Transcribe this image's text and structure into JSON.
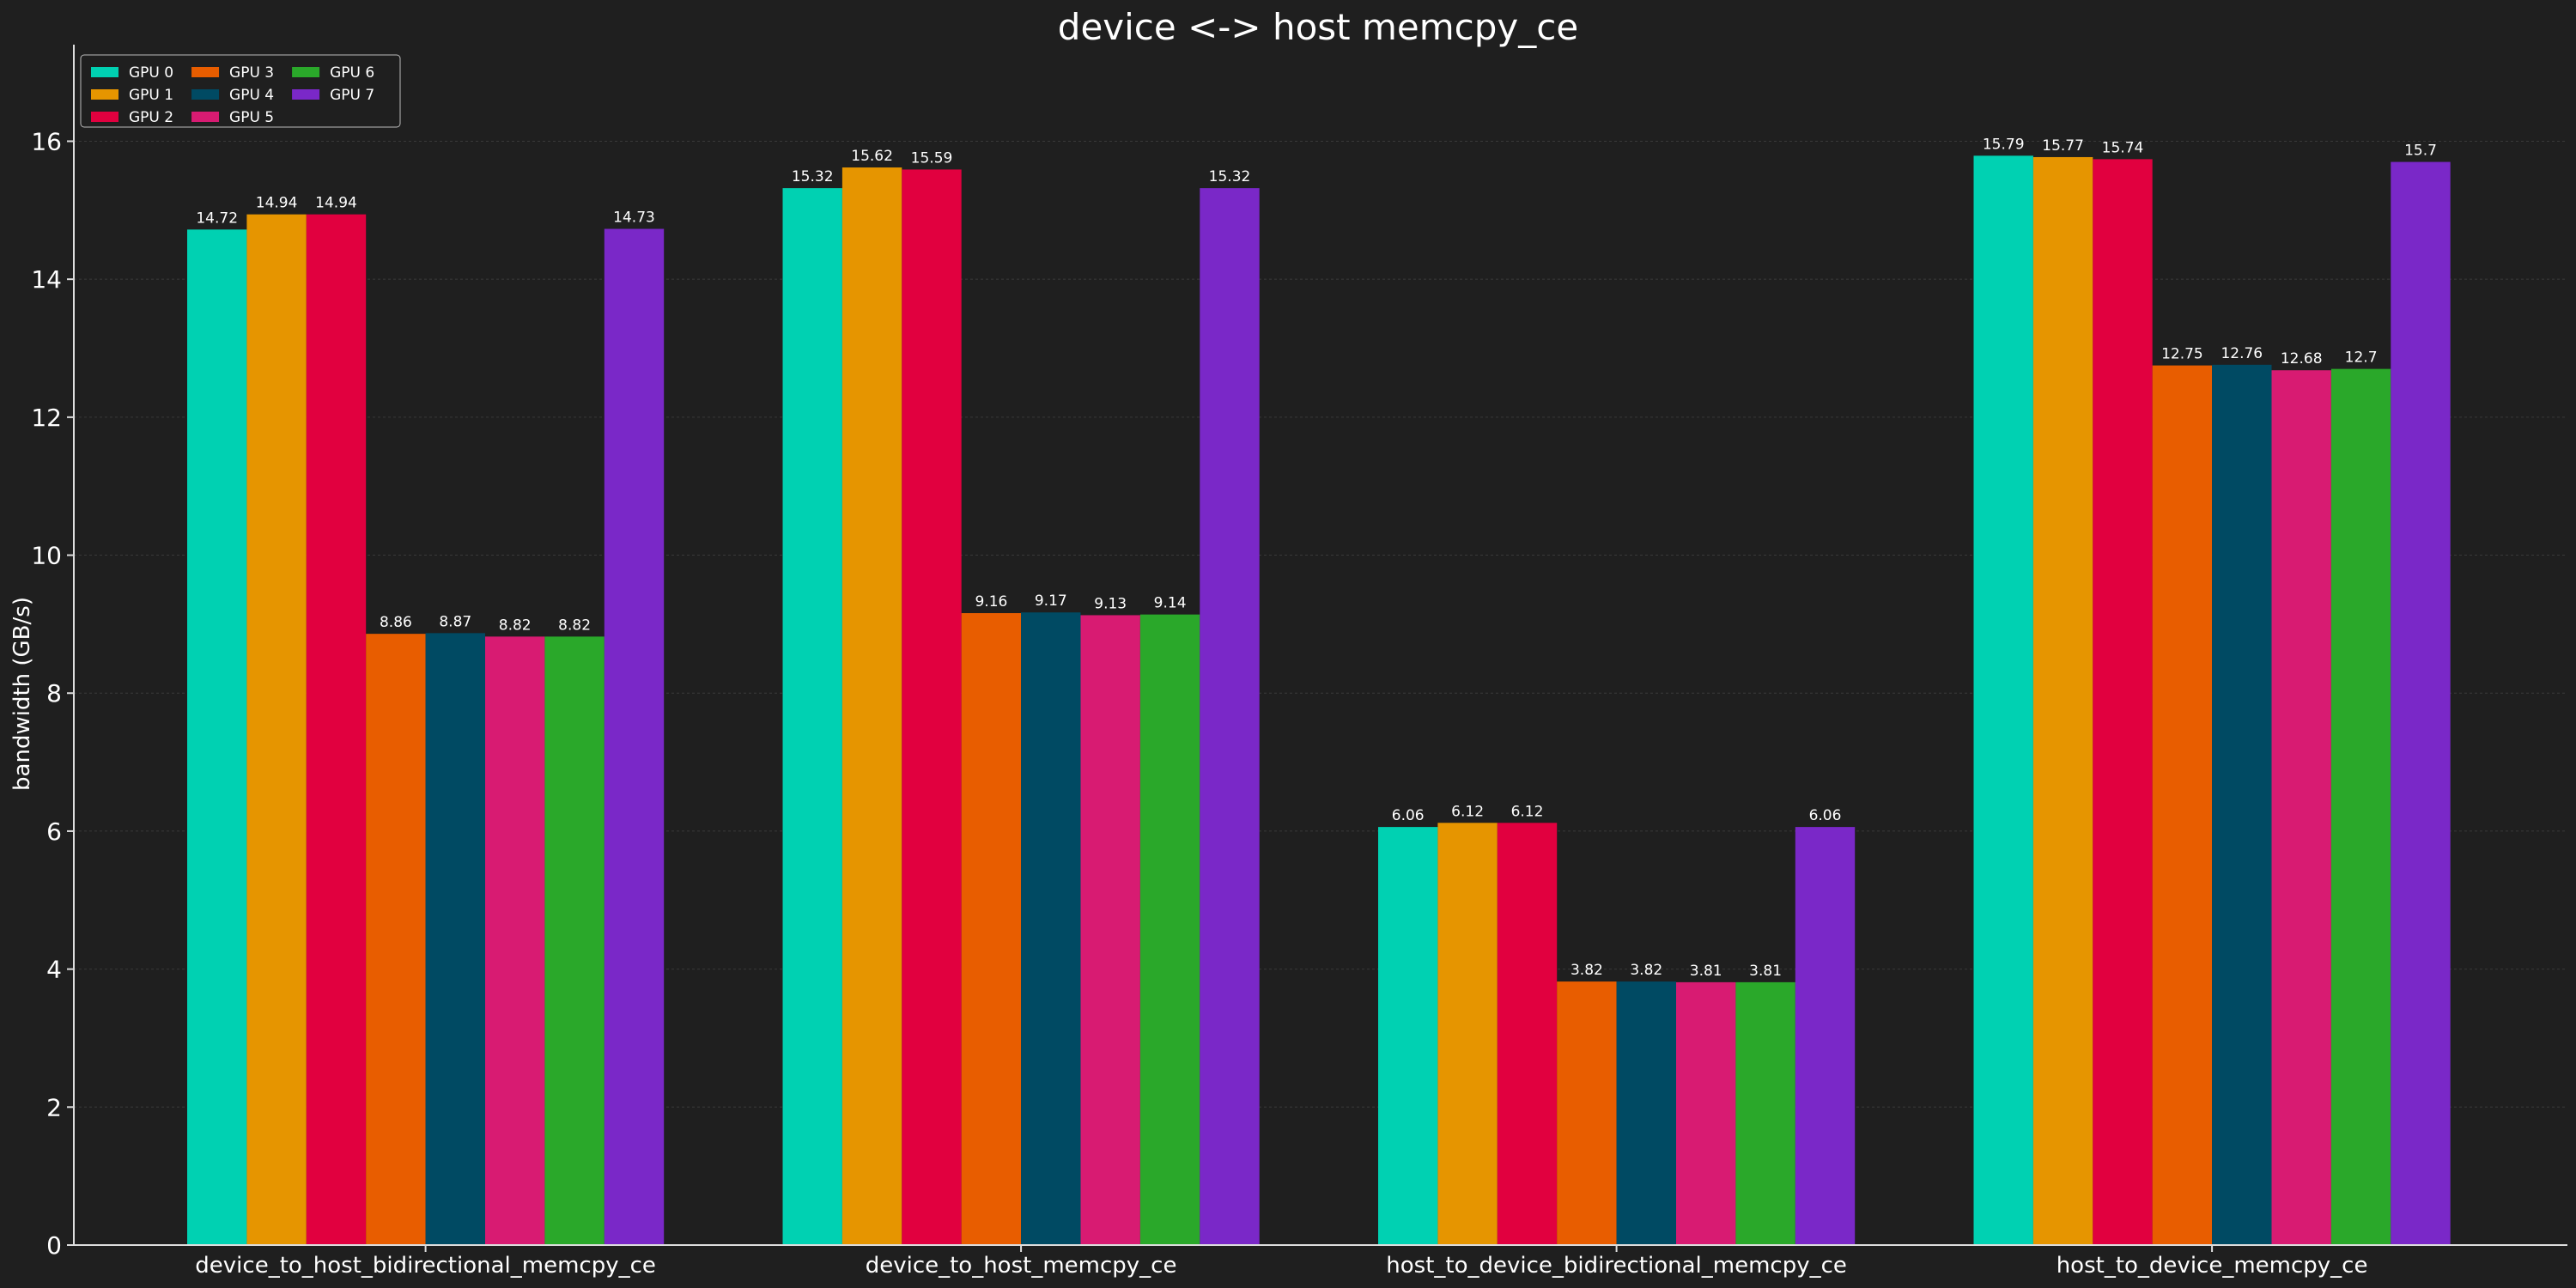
{
  "chart_data": {
    "type": "bar",
    "title": "device <-> host memcpy_ce",
    "xlabel": "",
    "ylabel": "bandwidth (GB/s)",
    "ylim": [
      0,
      17.4
    ],
    "yticks": [
      0,
      2,
      4,
      6,
      8,
      10,
      12,
      14,
      16
    ],
    "grid": true,
    "legend_position": "top-left",
    "legend_columns": 3,
    "categories": [
      "device_to_host_bidirectional_memcpy_ce",
      "device_to_host_memcpy_ce",
      "host_to_device_bidirectional_memcpy_ce",
      "host_to_device_memcpy_ce"
    ],
    "series": [
      {
        "name": "GPU 0",
        "color": "#00d1b2",
        "values": [
          14.72,
          15.32,
          6.06,
          15.79
        ]
      },
      {
        "name": "GPU 1",
        "color": "#e69500",
        "values": [
          14.94,
          15.62,
          6.12,
          15.77
        ]
      },
      {
        "name": "GPU 2",
        "color": "#e1003f",
        "values": [
          14.94,
          15.59,
          6.12,
          15.74
        ]
      },
      {
        "name": "GPU 3",
        "color": "#e85d00",
        "values": [
          8.86,
          9.16,
          3.82,
          12.75
        ]
      },
      {
        "name": "GPU 4",
        "color": "#004a63",
        "values": [
          8.87,
          9.17,
          3.82,
          12.76
        ]
      },
      {
        "name": "GPU 5",
        "color": "#d81b72",
        "values": [
          8.82,
          9.13,
          3.81,
          12.68
        ]
      },
      {
        "name": "GPU 6",
        "color": "#2aa82a",
        "values": [
          8.82,
          9.14,
          3.81,
          12.7
        ]
      },
      {
        "name": "GPU 7",
        "color": "#7a28c8",
        "values": [
          14.73,
          15.32,
          6.06,
          15.7
        ]
      }
    ]
  }
}
